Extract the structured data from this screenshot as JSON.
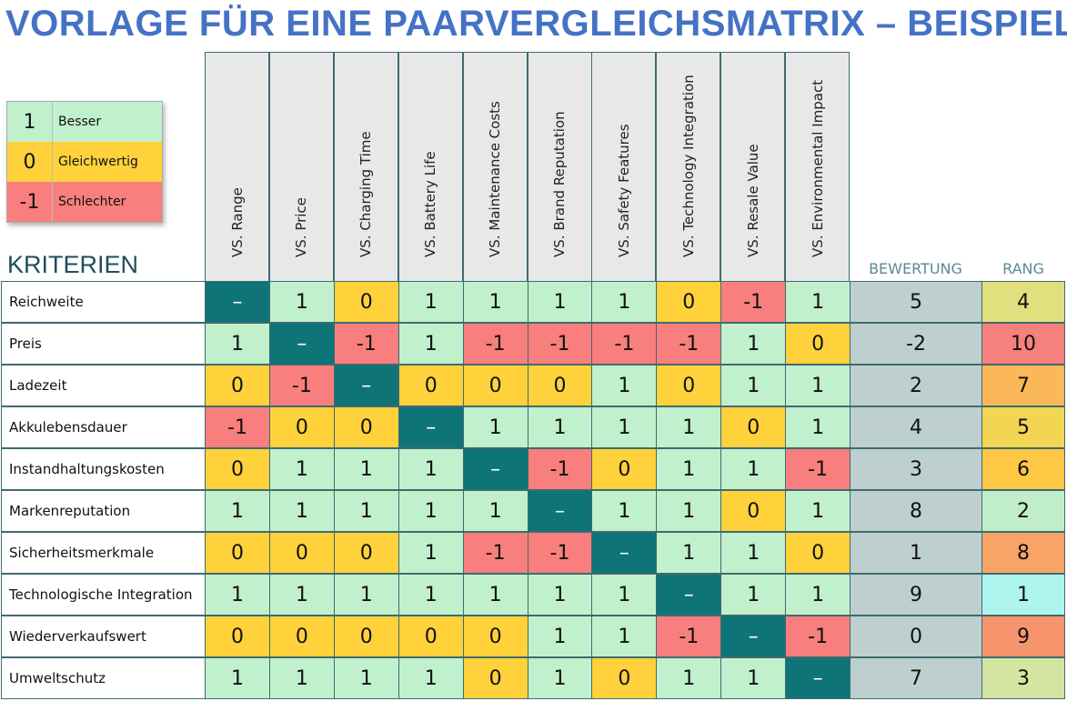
{
  "title": "VORLAGE FÜR EINE PAARVERGLEICHSMATRIX – BEISPIEL",
  "legend": [
    {
      "value": "1",
      "label": "Besser",
      "color": "#C1F0CC"
    },
    {
      "value": "0",
      "label": "Gleichwertig",
      "color": "#FFD23C"
    },
    {
      "value": "-1",
      "label": "Schlechter",
      "color": "#F87F7D"
    }
  ],
  "criteria_heading": "KRITERIEN",
  "vs_prefix": "VS.",
  "columns": [
    "Range",
    "Price",
    "Charging Time",
    "Battery Life",
    "Maintenance Costs",
    "Brand Reputation",
    "Safety Features",
    "Technology Integration",
    "Resale Value",
    "Environmental Impact"
  ],
  "score_heading": "BEWERTUNG",
  "rank_heading": "RANG",
  "diagonal_symbol": "–",
  "colors": {
    "1": "#C1F0CC",
    "0": "#FFD23C",
    "-1": "#F87F7D",
    "diagonal": "#0E7477",
    "score_bg": "#BECFCF",
    "header_bg": "#E8E8E8",
    "title": "#4472C4"
  },
  "rows": [
    {
      "label": "Reichweite",
      "values": [
        "–",
        "1",
        "0",
        "1",
        "1",
        "1",
        "1",
        "0",
        "-1",
        "1"
      ],
      "score": "5",
      "rank": "4",
      "rank_color": "#E2DF7E"
    },
    {
      "label": "Preis",
      "values": [
        "1",
        "–",
        "-1",
        "1",
        "-1",
        "-1",
        "-1",
        "-1",
        "1",
        "0"
      ],
      "score": "-2",
      "rank": "10",
      "rank_color": "#F6807C"
    },
    {
      "label": "Ladezeit",
      "values": [
        "0",
        "-1",
        "–",
        "0",
        "0",
        "0",
        "1",
        "0",
        "1",
        "1"
      ],
      "score": "2",
      "rank": "7",
      "rank_color": "#FBB858"
    },
    {
      "label": "Akkulebensdauer",
      "values": [
        "-1",
        "0",
        "0",
        "–",
        "1",
        "1",
        "1",
        "1",
        "0",
        "1"
      ],
      "score": "4",
      "rank": "5",
      "rank_color": "#F2D552"
    },
    {
      "label": "Instandhaltungskosten",
      "values": [
        "0",
        "1",
        "1",
        "1",
        "–",
        "-1",
        "0",
        "1",
        "1",
        "-1"
      ],
      "score": "3",
      "rank": "6",
      "rank_color": "#FEC845"
    },
    {
      "label": "Markenreputation",
      "values": [
        "1",
        "1",
        "1",
        "1",
        "1",
        "–",
        "1",
        "1",
        "0",
        "1"
      ],
      "score": "8",
      "rank": "2",
      "rank_color": "#C0EECB"
    },
    {
      "label": "Sicherheitsmerkmale",
      "values": [
        "0",
        "0",
        "0",
        "1",
        "-1",
        "-1",
        "–",
        "1",
        "1",
        "0"
      ],
      "score": "1",
      "rank": "8",
      "rank_color": "#F8A466"
    },
    {
      "label": "Technologische Integration",
      "values": [
        "1",
        "1",
        "1",
        "1",
        "1",
        "1",
        "1",
        "–",
        "1",
        "1"
      ],
      "score": "9",
      "rank": "1",
      "rank_color": "#AEF4EF"
    },
    {
      "label": "Wiederverkaufswert",
      "values": [
        "0",
        "0",
        "0",
        "0",
        "0",
        "1",
        "1",
        "-1",
        "–",
        "-1"
      ],
      "score": "0",
      "rank": "9",
      "rank_color": "#F6946D"
    },
    {
      "label": "Umweltschutz",
      "values": [
        "1",
        "1",
        "1",
        "1",
        "0",
        "1",
        "0",
        "1",
        "1",
        "–"
      ],
      "score": "7",
      "rank": "3",
      "rank_color": "#D3E5A0"
    }
  ]
}
